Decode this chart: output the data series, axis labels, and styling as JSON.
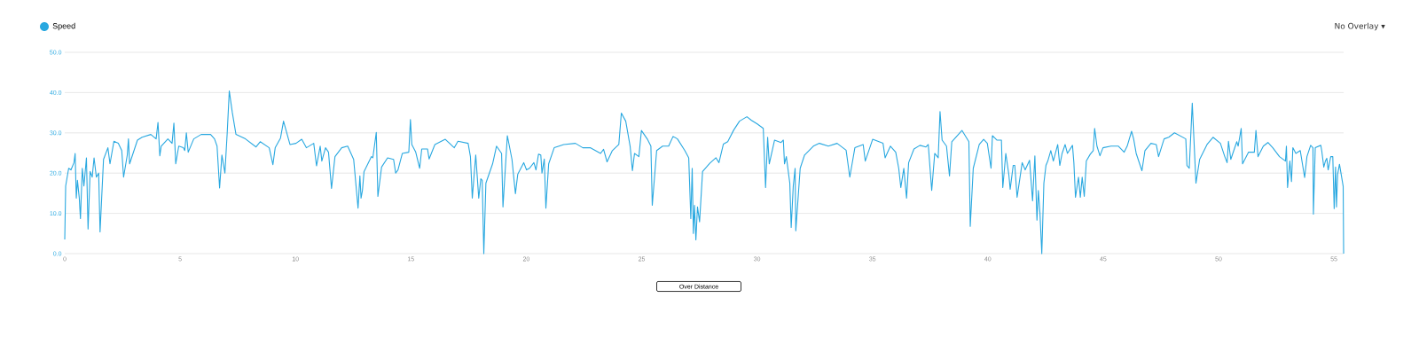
{
  "chart_data": {
    "type": "line",
    "x": [
      0,
      0.04,
      0.17,
      0.27,
      0.4,
      0.45,
      0.5,
      0.55,
      0.63,
      0.68,
      0.76,
      0.83,
      0.94,
      1.01,
      1.1,
      1.19,
      1.27,
      1.37,
      1.47,
      1.53,
      1.6,
      1.68,
      1.87,
      1.96,
      2.13,
      2.32,
      2.47,
      2.55,
      2.71,
      2.76,
      2.81,
      3.15,
      3.35,
      3.73,
      3.96,
      4.04,
      4.12,
      4.18,
      4.47,
      4.65,
      4.73,
      4.81,
      4.94,
      5.14,
      5.2,
      5.27,
      5.35,
      5.59,
      5.91,
      6.32,
      6.49,
      6.6,
      6.71,
      6.81,
      6.94,
      7.04,
      7.13,
      7.26,
      7.42,
      7.83,
      8.29,
      8.47,
      8.73,
      8.86,
      9.02,
      9.12,
      9.35,
      9.48,
      9.76,
      10.02,
      10.27,
      10.47,
      10.79,
      10.91,
      11.07,
      11.14,
      11.3,
      11.43,
      11.56,
      11.71,
      12.0,
      12.26,
      12.52,
      12.71,
      12.79,
      12.84,
      12.9,
      12.97,
      13.29,
      13.35,
      13.5,
      13.57,
      13.73,
      13.99,
      14.25,
      14.34,
      14.44,
      14.63,
      14.91,
      14.98,
      15.04,
      15.21,
      15.38,
      15.47,
      15.72,
      15.79,
      16.04,
      16.49,
      16.88,
      17.04,
      17.48,
      17.58,
      17.66,
      17.81,
      17.94,
      18.03,
      18.09,
      18.16,
      18.25,
      18.54,
      18.71,
      18.93,
      18.99,
      19.18,
      19.38,
      19.53,
      19.63,
      19.89,
      20.01,
      20.14,
      20.33,
      20.42,
      20.53,
      20.63,
      20.68,
      20.78,
      20.85,
      20.97,
      21.21,
      21.42,
      21.62,
      22.13,
      22.45,
      22.77,
      23.22,
      23.35,
      23.5,
      23.73,
      24.01,
      24.12,
      24.31,
      24.5,
      24.6,
      24.69,
      24.88,
      24.99,
      25.24,
      25.4,
      25.46,
      25.65,
      25.91,
      26.17,
      26.36,
      26.55,
      26.87,
      27.04,
      27.13,
      27.19,
      27.24,
      27.29,
      27.35,
      27.42,
      27.51,
      27.64,
      27.96,
      28.22,
      28.35,
      28.54,
      28.73,
      28.99,
      29.24,
      29.56,
      29.76,
      30.01,
      30.27,
      30.37,
      30.46,
      30.53,
      30.76,
      31.04,
      31.14,
      31.19,
      31.27,
      31.42,
      31.48,
      31.57,
      31.65,
      31.68,
      31.87,
      32.06,
      32.44,
      32.7,
      33.09,
      33.47,
      33.86,
      34.02,
      34.24,
      34.6,
      34.69,
      35.01,
      35.46,
      35.55,
      35.78,
      36.01,
      36.14,
      36.23,
      36.36,
      36.48,
      36.57,
      36.8,
      37.06,
      37.32,
      37.42,
      37.57,
      37.7,
      37.85,
      37.93,
      38.02,
      38.21,
      38.34,
      38.44,
      38.88,
      39.18,
      39.24,
      39.37,
      39.63,
      39.82,
      39.98,
      40.14,
      40.2,
      40.39,
      40.59,
      40.65,
      40.78,
      40.91,
      40.97,
      41.1,
      41.17,
      41.27,
      41.49,
      41.62,
      41.81,
      41.94,
      42.04,
      42.13,
      42.19,
      42.26,
      42.34,
      42.43,
      42.52,
      42.6,
      42.73,
      42.84,
      43.03,
      43.12,
      43.22,
      43.35,
      43.45,
      43.67,
      43.73,
      43.8,
      43.93,
      44.01,
      44.09,
      44.18,
      44.27,
      44.44,
      44.57,
      44.63,
      44.73,
      44.86,
      44.99,
      45.34,
      45.66,
      45.91,
      46.04,
      46.23,
      46.32,
      46.43,
      46.68,
      46.81,
      47.07,
      47.3,
      47.4,
      47.64,
      47.84,
      48.09,
      48.58,
      48.63,
      48.73,
      48.86,
      49.02,
      49.18,
      49.5,
      49.76,
      50.08,
      50.27,
      50.37,
      50.43,
      50.53,
      50.79,
      50.85,
      50.98,
      51.04,
      51.3,
      51.55,
      51.62,
      51.71,
      51.94,
      52.14,
      52.35,
      52.64,
      52.9,
      52.94,
      52.99,
      53.09,
      53.16,
      53.22,
      53.35,
      53.54,
      53.73,
      53.83,
      53.99,
      54.09,
      54.11,
      54.19,
      54.43,
      54.47,
      54.56,
      54.63,
      54.69,
      54.75,
      54.86,
      54.95,
      55.01,
      55.07,
      55.11,
      55.16,
      55.24,
      55.4,
      55.42
    ],
    "series": [
      {
        "name": "Speed",
        "color": "#29a8e0",
        "values": [
          3.5,
          16.8,
          21.2,
          20.8,
          22.6,
          24.9,
          13.8,
          18.2,
          13.8,
          8.7,
          21.2,
          16.8,
          23.8,
          6.1,
          20.4,
          19,
          23.8,
          19,
          20,
          5.4,
          13.8,
          23.4,
          26.3,
          22.3,
          27.9,
          27.4,
          25.6,
          19,
          24.5,
          28.5,
          22.3,
          28.2,
          28.9,
          29.6,
          28.5,
          32.6,
          24.3,
          26.7,
          28.5,
          27.4,
          32.4,
          22.3,
          26.7,
          26.3,
          25.6,
          30,
          25.2,
          28.5,
          29.6,
          29.6,
          28.5,
          26.7,
          16.3,
          24.5,
          20,
          30,
          40.4,
          35.1,
          29.6,
          28.5,
          26.5,
          27.8,
          26.8,
          26.3,
          22.1,
          26.3,
          28.7,
          32.9,
          27.1,
          27.4,
          28.4,
          26.3,
          27.4,
          21.8,
          26.7,
          23,
          26.3,
          25.2,
          16.2,
          24.1,
          26.3,
          26.7,
          23.4,
          11.3,
          19.3,
          13.8,
          15.7,
          20.4,
          24.1,
          23.8,
          30.1,
          14.2,
          21.5,
          23.8,
          23.4,
          20,
          20.8,
          24.9,
          25.2,
          33.3,
          27.1,
          25.2,
          21.2,
          26,
          26,
          23.5,
          27.1,
          28.4,
          26.3,
          27.9,
          27.4,
          24.1,
          13.8,
          24.5,
          13.8,
          18.6,
          18.2,
          0,
          17.5,
          22.3,
          26.7,
          24.9,
          11.6,
          29.3,
          23.4,
          14.9,
          19.7,
          22.6,
          20.8,
          21.2,
          22.6,
          20.8,
          24.7,
          24.5,
          20,
          23.5,
          11.3,
          22.3,
          26.3,
          26.7,
          27.1,
          27.4,
          26.3,
          26.3,
          24.9,
          25.9,
          22.8,
          25.6,
          27.1,
          34.9,
          32.9,
          26.7,
          20.6,
          24.9,
          24.1,
          30.6,
          28.5,
          26.7,
          12,
          25.6,
          26.7,
          26.7,
          29.1,
          28.5,
          25.6,
          23.8,
          8.7,
          21.2,
          5,
          12,
          3.4,
          11.6,
          7.9,
          20.4,
          22.5,
          23.8,
          22.6,
          27.2,
          27.8,
          30.7,
          32.9,
          34,
          33.1,
          32.2,
          31.1,
          16.4,
          28.9,
          22.3,
          28.2,
          27.6,
          28.2,
          22.3,
          24.1,
          17.5,
          6.5,
          16.8,
          21.2,
          5.7,
          21.2,
          24.5,
          26.7,
          27.4,
          26.7,
          27.4,
          25.7,
          19,
          26.3,
          27.1,
          23,
          28.4,
          27.4,
          23.8,
          26.7,
          25.2,
          21.2,
          16.4,
          21.2,
          13.8,
          22.6,
          26,
          26.9,
          26.5,
          27.1,
          15.7,
          24.9,
          23.8,
          35.3,
          28.2,
          26.7,
          19.3,
          27.8,
          30.6,
          27.8,
          6.8,
          21.2,
          27.1,
          28.4,
          27.4,
          21.2,
          29.3,
          28.2,
          28.2,
          16.4,
          24.9,
          19.7,
          16,
          21.9,
          21.9,
          14,
          22.6,
          20.8,
          23.2,
          13.1,
          24.3,
          8.3,
          15.7,
          10.1,
          0,
          17.5,
          21.9,
          23,
          25.6,
          23,
          27.1,
          21.9,
          24.9,
          27.1,
          24.9,
          26.9,
          22.6,
          14,
          19,
          14,
          19,
          14.2,
          23,
          24.7,
          25.6,
          31.1,
          26.7,
          24.3,
          26.3,
          26.7,
          26.7,
          25.2,
          26.7,
          30.4,
          28.5,
          24.9,
          20.6,
          25.6,
          27.4,
          27.1,
          24.1,
          28.5,
          28.9,
          30,
          28.5,
          21.9,
          21.2,
          37.4,
          17.5,
          23.4,
          27.1,
          28.9,
          27.4,
          24.1,
          22.6,
          27.9,
          23.4,
          27.8,
          26.7,
          31.1,
          22.3,
          25.2,
          25.2,
          30.6,
          24.1,
          26.7,
          27.6,
          26.3,
          24.1,
          23,
          26.7,
          16.4,
          23,
          17.9,
          26.3,
          24.9,
          25.6,
          18.9,
          24.1,
          26.9,
          26.3,
          9.8,
          26.3,
          26.9,
          25.6,
          21.5,
          23,
          23.7,
          20.8,
          24.1,
          24.1,
          11.2,
          21.5,
          11.6,
          19.7,
          22.2,
          16.7,
          0
        ]
      }
    ],
    "xlim": [
      0,
      55.42
    ],
    "xticks": [
      0,
      5,
      10,
      15,
      20,
      25,
      30,
      35,
      40,
      45,
      50,
      55
    ],
    "ylim": [
      0,
      50
    ],
    "yticks": [
      {
        "value": 0,
        "label": "0.0"
      },
      {
        "value": 10,
        "label": "10.0"
      },
      {
        "value": 20,
        "label": "20.0"
      },
      {
        "value": 30,
        "label": "30.0"
      },
      {
        "value": 40,
        "label": "40.0"
      },
      {
        "value": 50,
        "label": "50.0"
      }
    ],
    "grid": "y",
    "legend": "top left",
    "marker": "none",
    "annotations": [
      "No Overlay ▾",
      "Over Distance"
    ]
  }
}
